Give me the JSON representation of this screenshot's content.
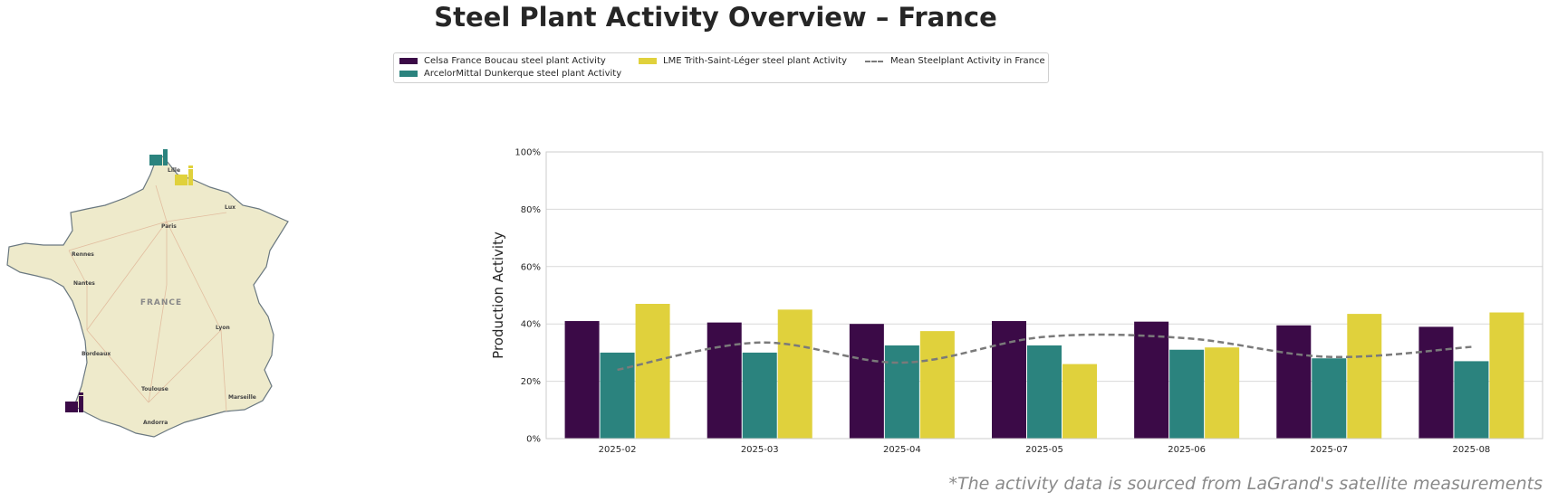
{
  "title": "Steel Plant Activity Overview – France",
  "footnote": "*The activity data is sourced from LaGrand's satellite measurements",
  "legend": {
    "items": [
      {
        "label": "Celsa France Boucau steel plant Activity",
        "color": "#3b0a47"
      },
      {
        "label": "ArcelorMittal Dunkerque steel plant Activity",
        "color": "#2b837e"
      },
      {
        "label": "LME Trith-Saint-Léger steel plant Activity",
        "color": "#e0d13c"
      },
      {
        "label": "Mean Steelplant Activity in France",
        "color": "#7a7a7a"
      }
    ]
  },
  "map": {
    "country_label": "FRANCE",
    "cities": [
      "Lille",
      "Paris",
      "Rennes",
      "Nantes",
      "Lyon",
      "Bordeaux",
      "Toulouse",
      "Marseille",
      "Andorra",
      "Lux"
    ],
    "plant_icons": [
      {
        "icon": "factory-icon",
        "color": "#2b837e"
      },
      {
        "icon": "factory-icon",
        "color": "#e0d13c"
      },
      {
        "icon": "factory-icon",
        "color": "#3b0a47"
      }
    ]
  },
  "chart_data": {
    "type": "bar",
    "categories": [
      "2025-02",
      "2025-03",
      "2025-04",
      "2025-05",
      "2025-06",
      "2025-07",
      "2025-08"
    ],
    "series": [
      {
        "name": "Celsa France Boucau steel plant Activity",
        "color": "#3b0a47",
        "values": [
          41,
          40.5,
          40,
          41,
          40.8,
          39.5,
          39
        ]
      },
      {
        "name": "ArcelorMittal Dunkerque steel plant Activity",
        "color": "#2b837e",
        "values": [
          30,
          30,
          32.5,
          32.5,
          31,
          28,
          27
        ]
      },
      {
        "name": "LME Trith-Saint-Léger steel plant Activity",
        "color": "#e0d13c",
        "values": [
          47,
          45,
          37.5,
          26,
          31.8,
          43.5,
          44
        ]
      }
    ],
    "line": {
      "name": "Mean Steelplant Activity in France",
      "type": "line",
      "style": "dashed",
      "color": "#7a7a7a",
      "values": [
        24,
        33.5,
        26.5,
        35.5,
        35,
        28.5,
        32
      ]
    },
    "ylabel": "Production Activity",
    "xlabel": "",
    "ylim": [
      0,
      100
    ],
    "yticks": [
      "0%",
      "20%",
      "40%",
      "60%",
      "80%",
      "100%"
    ],
    "grid": true,
    "legend_position": "top"
  }
}
